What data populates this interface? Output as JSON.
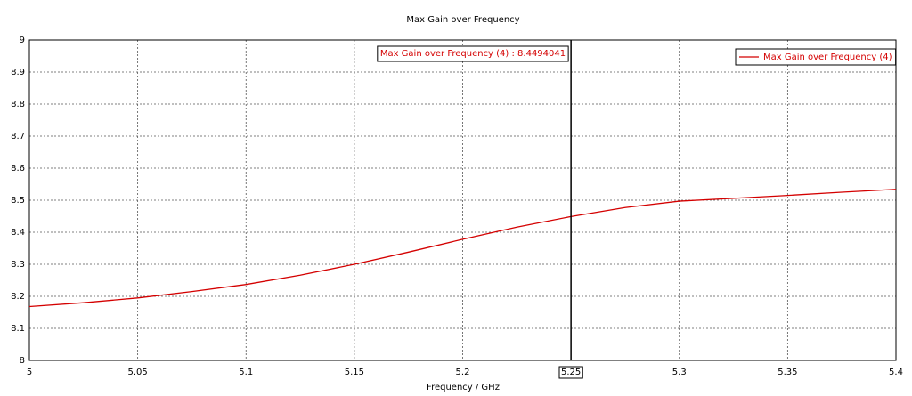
{
  "chart_data": {
    "type": "line",
    "title": "Max Gain over Frequency",
    "x_label": "Frequency / GHz",
    "x": [
      5,
      5.025,
      5.05,
      5.075,
      5.1,
      5.125,
      5.15,
      5.175,
      5.2,
      5.225,
      5.25,
      5.275,
      5.3,
      5.325,
      5.35,
      5.375,
      5.4
    ],
    "series": [
      {
        "name": "Max Gain over Frequency (4)",
        "color": "#d40000",
        "values": [
          8.168,
          8.18,
          8.195,
          8.215,
          8.237,
          8.266,
          8.3,
          8.338,
          8.378,
          8.416,
          8.449,
          8.477,
          8.497,
          8.506,
          8.515,
          8.525,
          8.534
        ]
      }
    ],
    "xlim": [
      5,
      5.4
    ],
    "xticks": [
      5,
      5.05,
      5.1,
      5.15,
      5.2,
      5.25,
      5.3,
      5.35,
      5.4
    ],
    "ylim": [
      8,
      9
    ],
    "yticks": [
      8,
      8.1,
      8.2,
      8.3,
      8.4,
      8.5,
      8.6,
      8.7,
      8.8,
      8.9,
      9
    ],
    "grid": true,
    "legend": "upper right",
    "marker": {
      "x": 5.25,
      "label": "Max Gain over Frequency (4) : 8.4494041"
    }
  }
}
